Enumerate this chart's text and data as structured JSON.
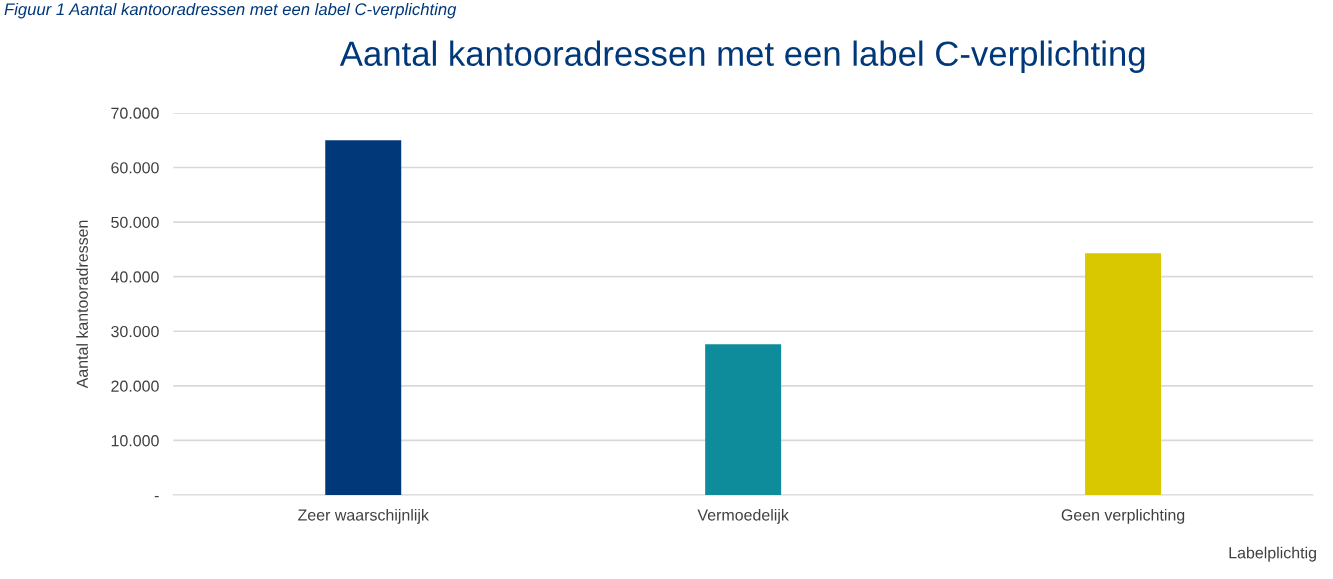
{
  "chart_data": {
    "type": "bar",
    "title": "Aantal kantooradressen met een label C-verplichting",
    "annotations": [
      "Figuur 1 Aantal kantooradressen met een label C-verplichting"
    ],
    "xlabel": "Labelplichtig",
    "ylabel": "Aantal kantooradressen",
    "categories": [
      "Zeer waarschijnlijk",
      "Vermoedelijk",
      "Geen verplichting"
    ],
    "values": [
      65000,
      27600,
      44300
    ],
    "colors": [
      "#00387a",
      "#0f8c9c",
      "#d9c800"
    ],
    "ylim": [
      0,
      70000
    ],
    "yticks": [
      {
        "value": 0,
        "label": "-"
      },
      {
        "value": 10000,
        "label": "10.000"
      },
      {
        "value": 20000,
        "label": "20.000"
      },
      {
        "value": 30000,
        "label": "30.000"
      },
      {
        "value": 40000,
        "label": "40.000"
      },
      {
        "value": 50000,
        "label": "50.000"
      },
      {
        "value": 60000,
        "label": "60.000"
      },
      {
        "value": 70000,
        "label": "70.000"
      }
    ],
    "grid": "y",
    "legend": false
  }
}
